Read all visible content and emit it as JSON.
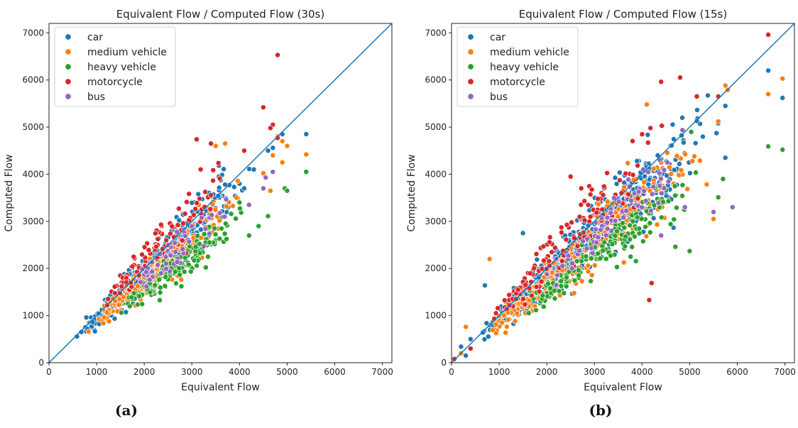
{
  "colors": {
    "car": "#1f77b4",
    "medium vehicle": "#ff7f0e",
    "heavy vehicle": "#2ca02c",
    "motorcycle": "#d62728",
    "bus": "#9467bd",
    "identity_line": "#1f77b4"
  },
  "chart_data": [
    {
      "type": "scatter",
      "title": "Equivalent Flow / Computed Flow (30s)",
      "xlabel": "Equivalent Flow",
      "ylabel": "Computed Flow",
      "xlim": [
        0,
        7200
      ],
      "ylim": [
        0,
        7200
      ],
      "xticks": [
        0,
        1000,
        2000,
        3000,
        4000,
        5000,
        6000,
        7000
      ],
      "yticks": [
        0,
        1000,
        2000,
        3000,
        4000,
        5000,
        6000,
        7000
      ],
      "tick_labels": [
        "0",
        "1000",
        "2000",
        "3000",
        "4000",
        "5000",
        "6000",
        "7000"
      ],
      "legend_position": "top-left",
      "grid": false,
      "reference_line": "y = x",
      "caption": "(a)",
      "series": [
        {
          "name": "car",
          "cloud": {
            "x_range": [
              400,
              4200
            ],
            "ratio": 0.94,
            "spread": 0.09,
            "count": 420
          },
          "extra_points": [
            [
              4900,
              4850
            ],
            [
              5400,
              4850
            ],
            [
              4700,
              4560
            ],
            [
              4600,
              4500
            ],
            [
              4300,
              4100
            ],
            [
              4000,
              3800
            ],
            [
              4100,
              3700
            ]
          ]
        },
        {
          "name": "medium vehicle",
          "cloud": {
            "x_range": [
              800,
              4000
            ],
            "ratio": 0.86,
            "spread": 0.09,
            "count": 230
          },
          "extra_points": [
            [
              4800,
              4800
            ],
            [
              4900,
              4700
            ],
            [
              5000,
              4600
            ],
            [
              4700,
              4400
            ],
            [
              5400,
              4420
            ],
            [
              4900,
              4250
            ],
            [
              4500,
              4020
            ],
            [
              4650,
              3650
            ],
            [
              3700,
              4650
            ],
            [
              3500,
              4600
            ]
          ]
        },
        {
          "name": "heavy vehicle",
          "cloud": {
            "x_range": [
              1400,
              4100
            ],
            "ratio": 0.76,
            "spread": 0.07,
            "count": 150
          },
          "extra_points": [
            [
              5400,
              4050
            ],
            [
              4950,
              3700
            ],
            [
              5000,
              3650
            ],
            [
              4600,
              3110
            ],
            [
              4400,
              2900
            ],
            [
              4000,
              3400
            ],
            [
              4200,
              2700
            ]
          ]
        },
        {
          "name": "motorcycle",
          "cloud": {
            "x_range": [
              1000,
              4000
            ],
            "ratio": 1.07,
            "spread": 0.08,
            "count": 110
          },
          "extra_points": [
            [
              4800,
              6530
            ],
            [
              4500,
              5420
            ],
            [
              4700,
              5050
            ],
            [
              4650,
              4980
            ],
            [
              4800,
              4770
            ],
            [
              3100,
              4740
            ],
            [
              3400,
              4650
            ],
            [
              4100,
              4500
            ]
          ]
        },
        {
          "name": "bus",
          "cloud": {
            "x_range": [
              1600,
              4000
            ],
            "ratio": 0.9,
            "spread": 0.06,
            "count": 55
          },
          "extra_points": [
            [
              4550,
              3930
            ],
            [
              4500,
              3700
            ],
            [
              4200,
              3350
            ],
            [
              4700,
              4050
            ]
          ]
        }
      ]
    },
    {
      "type": "scatter",
      "title": "Equivalent Flow / Computed Flow (15s)",
      "xlabel": "Equivalent Flow",
      "ylabel": "Computed Flow",
      "xlim": [
        0,
        7200
      ],
      "ylim": [
        0,
        7200
      ],
      "xticks": [
        0,
        1000,
        2000,
        3000,
        4000,
        5000,
        6000,
        7000
      ],
      "yticks": [
        0,
        1000,
        2000,
        3000,
        4000,
        5000,
        6000,
        7000
      ],
      "tick_labels": [
        "0",
        "1000",
        "2000",
        "3000",
        "4000",
        "5000",
        "6000",
        "7000"
      ],
      "legend_position": "top-left",
      "grid": false,
      "reference_line": "y = x",
      "caption": "(b)",
      "series": [
        {
          "name": "car",
          "cloud": {
            "x_range": [
              200,
              5400
            ],
            "ratio": 0.92,
            "spread": 0.11,
            "count": 520
          },
          "extra_points": [
            [
              6650,
              6200
            ],
            [
              6950,
              5620
            ],
            [
              5600,
              5080
            ],
            [
              5750,
              5450
            ],
            [
              5750,
              4350
            ],
            [
              5150,
              5130
            ],
            [
              60,
              80
            ],
            [
              300,
              150
            ],
            [
              200,
              340
            ],
            [
              400,
              500
            ],
            [
              700,
              1640
            ],
            [
              1500,
              2750
            ]
          ]
        },
        {
          "name": "medium vehicle",
          "cloud": {
            "x_range": [
              400,
              5400
            ],
            "ratio": 0.86,
            "spread": 0.11,
            "count": 290
          },
          "extra_points": [
            [
              6950,
              6030
            ],
            [
              6650,
              5700
            ],
            [
              5800,
              5790
            ],
            [
              5750,
              5880
            ],
            [
              5600,
              5120
            ],
            [
              5500,
              3050
            ],
            [
              4100,
              5480
            ],
            [
              800,
              2200
            ],
            [
              200,
              200
            ],
            [
              300,
              760
            ]
          ]
        },
        {
          "name": "heavy vehicle",
          "cloud": {
            "x_range": [
              1300,
              5300
            ],
            "ratio": 0.76,
            "spread": 0.09,
            "count": 190
          },
          "extra_points": [
            [
              6650,
              4590
            ],
            [
              6950,
              4520
            ],
            [
              5700,
              3900
            ],
            [
              5000,
              2370
            ],
            [
              4700,
              2460
            ],
            [
              4600,
              2940
            ],
            [
              5600,
              3510
            ]
          ]
        },
        {
          "name": "motorcycle",
          "cloud": {
            "x_range": [
              600,
              4600
            ],
            "ratio": 1.06,
            "spread": 0.09,
            "count": 140
          },
          "extra_points": [
            [
              6650,
              6960
            ],
            [
              4800,
              6050
            ],
            [
              4400,
              5960
            ],
            [
              5150,
              5650
            ],
            [
              4200,
              1690
            ],
            [
              4150,
              1330
            ],
            [
              5600,
              5650
            ],
            [
              2500,
              3950
            ],
            [
              60,
              80
            ],
            [
              400,
              300
            ]
          ]
        },
        {
          "name": "bus",
          "cloud": {
            "x_range": [
              1700,
              5200
            ],
            "ratio": 0.88,
            "spread": 0.07,
            "count": 75
          },
          "extra_points": [
            [
              5500,
              3200
            ],
            [
              5900,
              3300
            ],
            [
              4400,
              2700
            ],
            [
              2200,
              1650
            ],
            [
              4900,
              3300
            ]
          ]
        }
      ]
    }
  ]
}
